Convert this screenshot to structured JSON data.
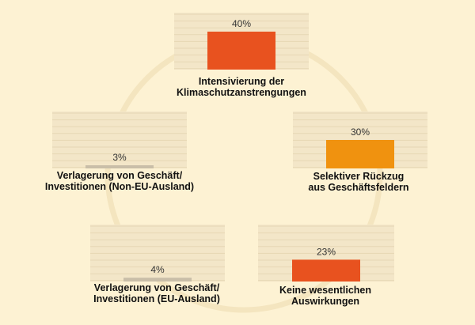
{
  "chart_data": {
    "type": "bar",
    "ylim": [
      0,
      100
    ],
    "colors": {
      "background": "#fdf2d3",
      "grid_panel": "#f3e6c8",
      "grid_line": "#e6d7b4",
      "ring": "#f4e5bf",
      "neutral_bar": "#c9bea8"
    },
    "categories": [
      {
        "label_lines": [
          "Intensivierung der",
          "Klimaschutzanstrengungen"
        ],
        "value": 40,
        "value_label": "40%",
        "color": "#e8521f"
      },
      {
        "label_lines": [
          "Selektiver Rückzug",
          "aus Geschäftsfeldern"
        ],
        "value": 30,
        "value_label": "30%",
        "color": "#f0920f"
      },
      {
        "label_lines": [
          "Keine wesentlichen",
          "Auswirkungen"
        ],
        "value": 23,
        "value_label": "23%",
        "color": "#e8521f"
      },
      {
        "label_lines": [
          "Verlagerung von Geschäft/",
          "Investitionen (EU-Ausland)"
        ],
        "value": 4,
        "value_label": "4%",
        "color": "#c9bea8"
      },
      {
        "label_lines": [
          "Verlagerung von Geschäft/",
          "Investitionen (Non-EU-Ausland)"
        ],
        "value": 3,
        "value_label": "3%",
        "color": "#c9bea8"
      }
    ]
  }
}
